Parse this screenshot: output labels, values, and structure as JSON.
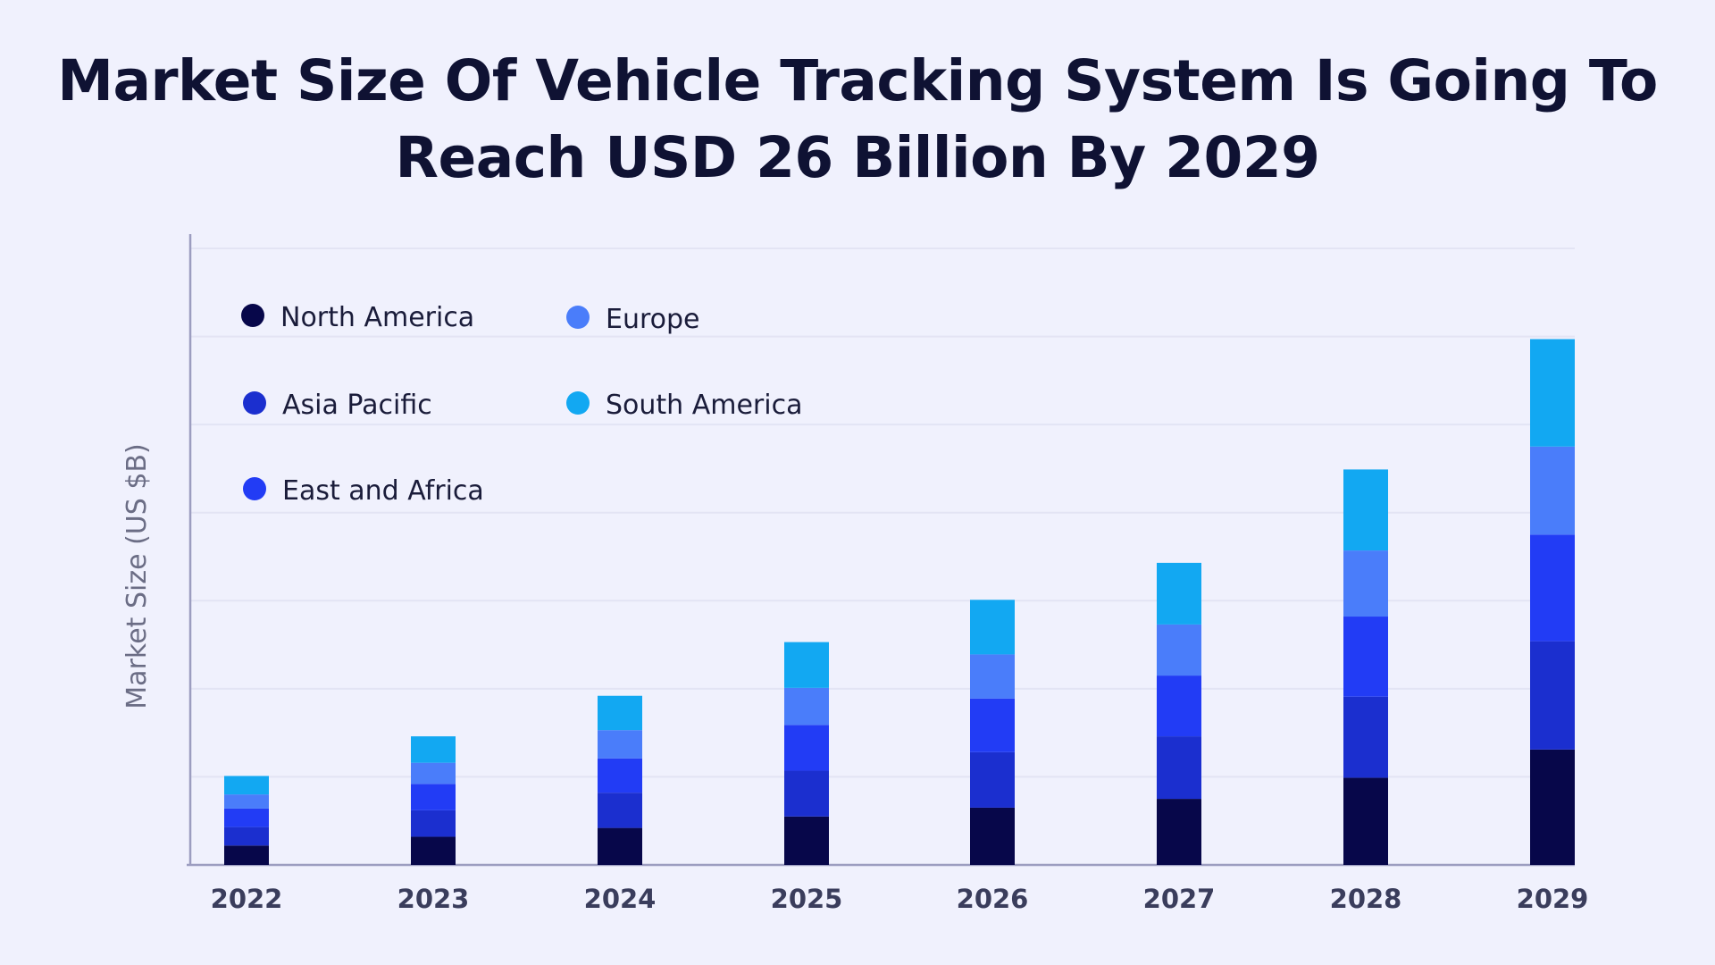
{
  "chart_data": {
    "type": "bar",
    "stacked": true,
    "title_lines": [
      "Market Size Of Vehicle Tracking System Is Going To",
      "Reach USD 26 Billion By 2029"
    ],
    "xlabel": "",
    "ylabel": "Market Size (US $B)",
    "ylim": [
      0,
      7
    ],
    "grid": true,
    "legend_position": "top-left",
    "categories": [
      "2022",
      "2023",
      "2024",
      "2025",
      "2026",
      "2027",
      "2028",
      "2029"
    ],
    "series": [
      {
        "name": "North America",
        "color": "#07074a",
        "values": [
          0.22,
          0.32,
          0.42,
          0.55,
          0.65,
          0.75,
          0.99,
          1.31
        ]
      },
      {
        "name": "Asia Pacific",
        "color": "#1b2fcf",
        "values": [
          0.21,
          0.3,
          0.4,
          0.52,
          0.63,
          0.71,
          0.92,
          1.23
        ]
      },
      {
        "name": "East and Africa",
        "color": "#223cf5",
        "values": [
          0.21,
          0.3,
          0.39,
          0.52,
          0.61,
          0.69,
          0.91,
          1.21
        ]
      },
      {
        "name": "Europe",
        "color": "#4a7dfa",
        "values": [
          0.16,
          0.24,
          0.32,
          0.42,
          0.5,
          0.58,
          0.75,
          1.0
        ]
      },
      {
        "name": "South America",
        "color": "#12a8f2",
        "values": [
          0.21,
          0.3,
          0.39,
          0.52,
          0.62,
          0.7,
          0.92,
          1.22
        ]
      }
    ]
  }
}
